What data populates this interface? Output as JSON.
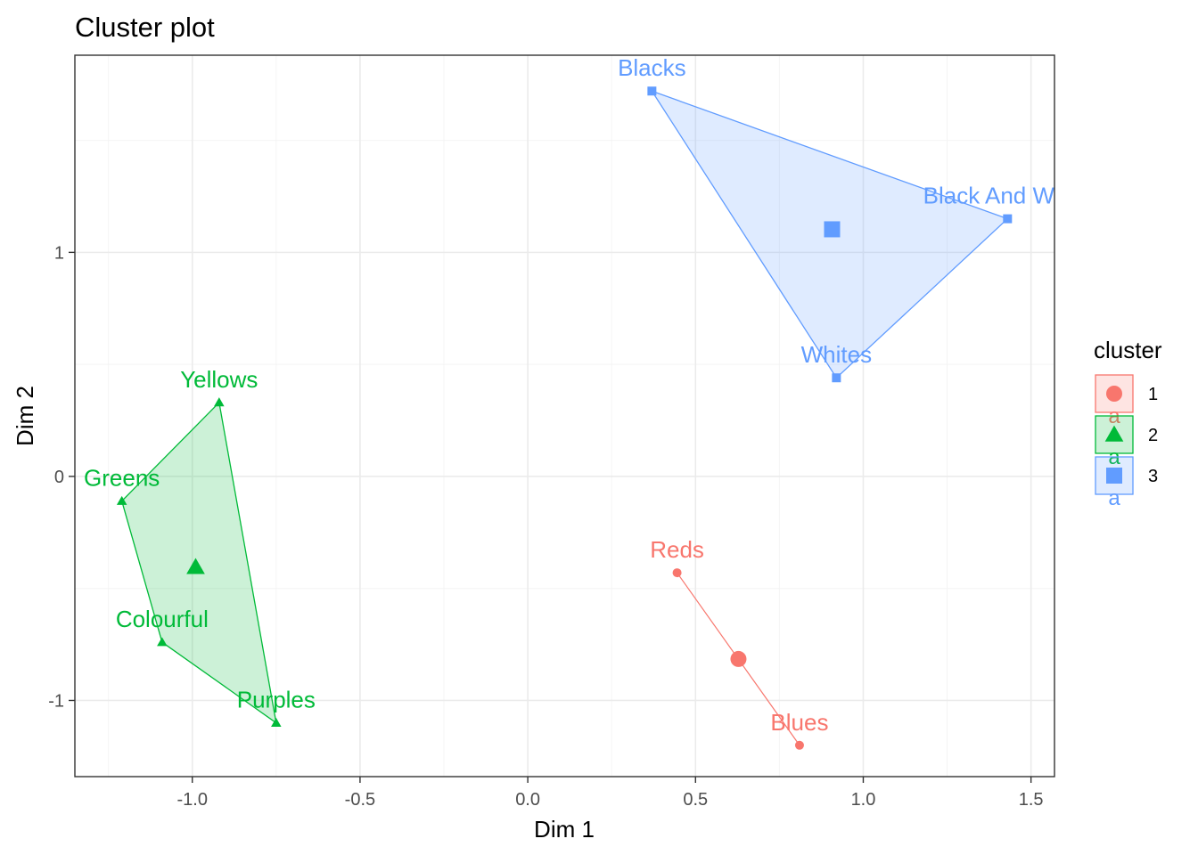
{
  "chart_data": {
    "type": "scatter",
    "title": "Cluster plot",
    "xlabel": "Dim 1",
    "ylabel": "Dim 2",
    "xlim": [
      -1.35,
      1.57
    ],
    "ylim": [
      -1.34,
      1.88
    ],
    "xticks": [
      -1.0,
      -0.5,
      0.0,
      0.5,
      1.0,
      1.5
    ],
    "xtick_labels": [
      "-1.0",
      "-0.5",
      "0.0",
      "0.5",
      "1.0",
      "1.5"
    ],
    "yticks": [
      -1,
      0,
      1
    ],
    "ytick_labels": [
      "-1",
      "0",
      "1"
    ],
    "grid": true,
    "legend": {
      "title": "cluster",
      "position": "right",
      "entries": [
        "1",
        "2",
        "3"
      ],
      "key_letter": "a"
    },
    "series": [
      {
        "cluster": "1",
        "color": "#F8766D",
        "shape": "circle",
        "points": [
          {
            "label": "Reds",
            "x": 0.445,
            "y": -0.43
          },
          {
            "label": "Blues",
            "x": 0.81,
            "y": -1.2
          }
        ],
        "hull": [
          "Reds",
          "Blues"
        ],
        "centroid": {
          "x": 0.628,
          "y": -0.815
        }
      },
      {
        "cluster": "2",
        "color": "#00BA38",
        "shape": "triangle",
        "points": [
          {
            "label": "Yellows",
            "x": -0.92,
            "y": 0.33
          },
          {
            "label": "Greens",
            "x": -1.21,
            "y": -0.11
          },
          {
            "label": "Colourful",
            "x": -1.09,
            "y": -0.74
          },
          {
            "label": "Purples",
            "x": -0.75,
            "y": -1.1
          }
        ],
        "hull": [
          "Yellows",
          "Greens",
          "Colourful",
          "Purples"
        ],
        "centroid": {
          "x": -0.99,
          "y": -0.405
        }
      },
      {
        "cluster": "3",
        "color": "#619CFF",
        "shape": "square",
        "points": [
          {
            "label": "Blacks",
            "x": 0.37,
            "y": 1.72
          },
          {
            "label": "Black And White",
            "x": 1.43,
            "y": 1.15
          },
          {
            "label": "Whites",
            "x": 0.92,
            "y": 0.44
          }
        ],
        "hull": [
          "Blacks",
          "Black And White",
          "Whites"
        ],
        "centroid": {
          "x": 0.907,
          "y": 1.103
        }
      }
    ]
  }
}
